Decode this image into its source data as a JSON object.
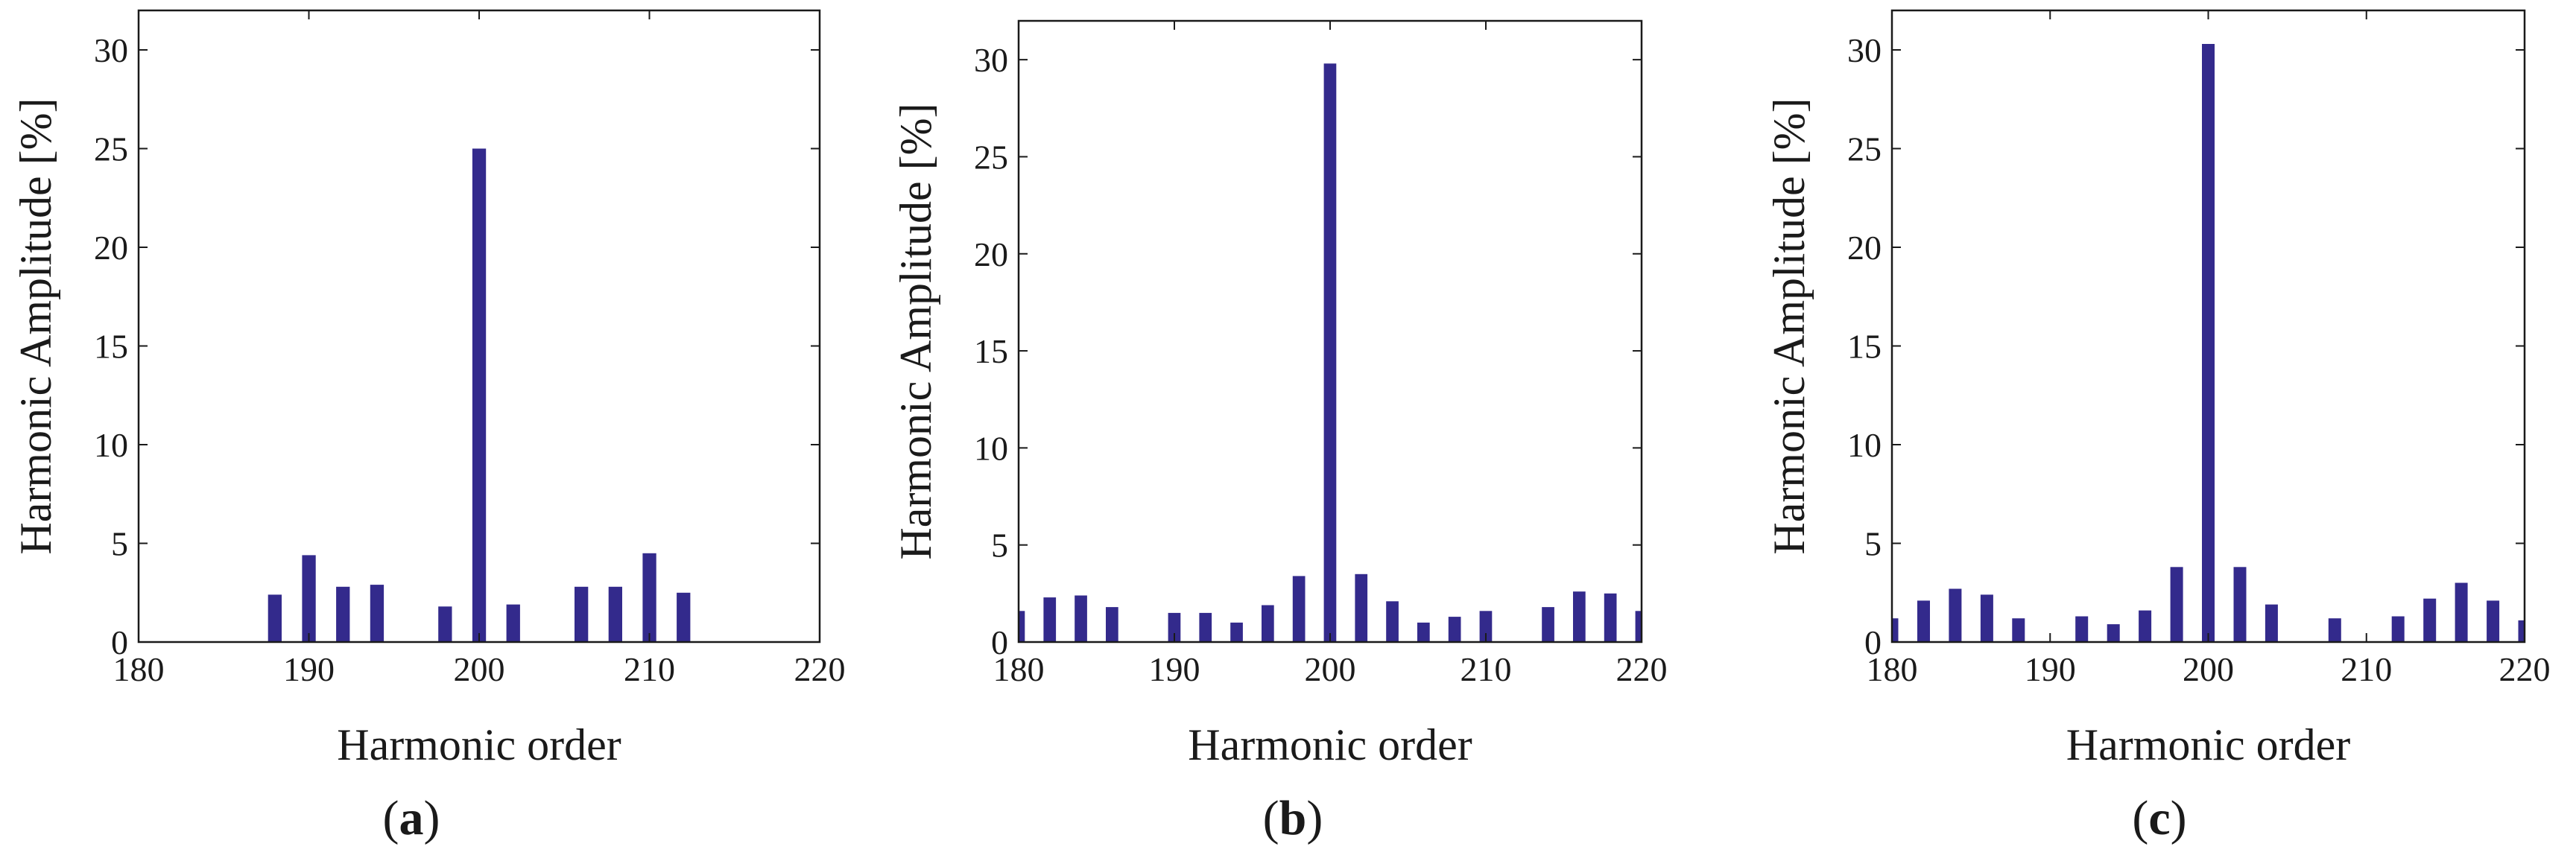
{
  "bar_color": "#332a8c",
  "chart_data": [
    {
      "type": "bar",
      "panel_label": "a",
      "xlabel": "Harmonic order",
      "ylabel": "Harmonic Amplitude [%]",
      "xlim": [
        180,
        220
      ],
      "ylim": [
        0,
        32
      ],
      "xticks": [
        180,
        190,
        200,
        210,
        220
      ],
      "yticks": [
        0,
        5,
        10,
        15,
        20,
        25,
        30
      ],
      "x": [
        188,
        190,
        192,
        194,
        198,
        200,
        202,
        206,
        208,
        210,
        212
      ],
      "values": [
        2.4,
        4.4,
        2.8,
        2.9,
        1.8,
        25.0,
        1.9,
        2.8,
        2.8,
        4.5,
        2.5
      ]
    },
    {
      "type": "bar",
      "panel_label": "b",
      "xlabel": "Harmonic order",
      "ylabel": "Harmonic Amplitude [%]",
      "xlim": [
        180,
        220
      ],
      "ylim": [
        0,
        32
      ],
      "xticks": [
        180,
        190,
        200,
        210,
        220
      ],
      "yticks": [
        0,
        5,
        10,
        15,
        20,
        25,
        30
      ],
      "x": [
        180,
        182,
        184,
        186,
        190,
        192,
        194,
        196,
        198,
        200,
        202,
        204,
        206,
        208,
        210,
        214,
        216,
        218,
        220
      ],
      "values": [
        1.6,
        2.3,
        2.4,
        1.8,
        1.5,
        1.5,
        1.0,
        1.9,
        3.4,
        29.8,
        3.5,
        2.1,
        1.0,
        1.3,
        1.6,
        1.8,
        2.6,
        2.5,
        1.6
      ]
    },
    {
      "type": "bar",
      "panel_label": "c",
      "xlabel": "Harmonic order",
      "ylabel": "Harmonic Amplitude [%]",
      "xlim": [
        180,
        220
      ],
      "ylim": [
        0,
        32
      ],
      "xticks": [
        180,
        190,
        200,
        210,
        220
      ],
      "yticks": [
        0,
        5,
        10,
        15,
        20,
        25,
        30
      ],
      "x": [
        180,
        182,
        184,
        186,
        188,
        192,
        194,
        196,
        198,
        200,
        202,
        204,
        208,
        212,
        214,
        216,
        218,
        220
      ],
      "values": [
        1.2,
        2.1,
        2.7,
        2.4,
        1.2,
        1.3,
        0.9,
        1.6,
        3.8,
        30.3,
        3.8,
        1.9,
        1.2,
        1.3,
        2.2,
        3.0,
        2.1,
        1.1
      ]
    }
  ]
}
